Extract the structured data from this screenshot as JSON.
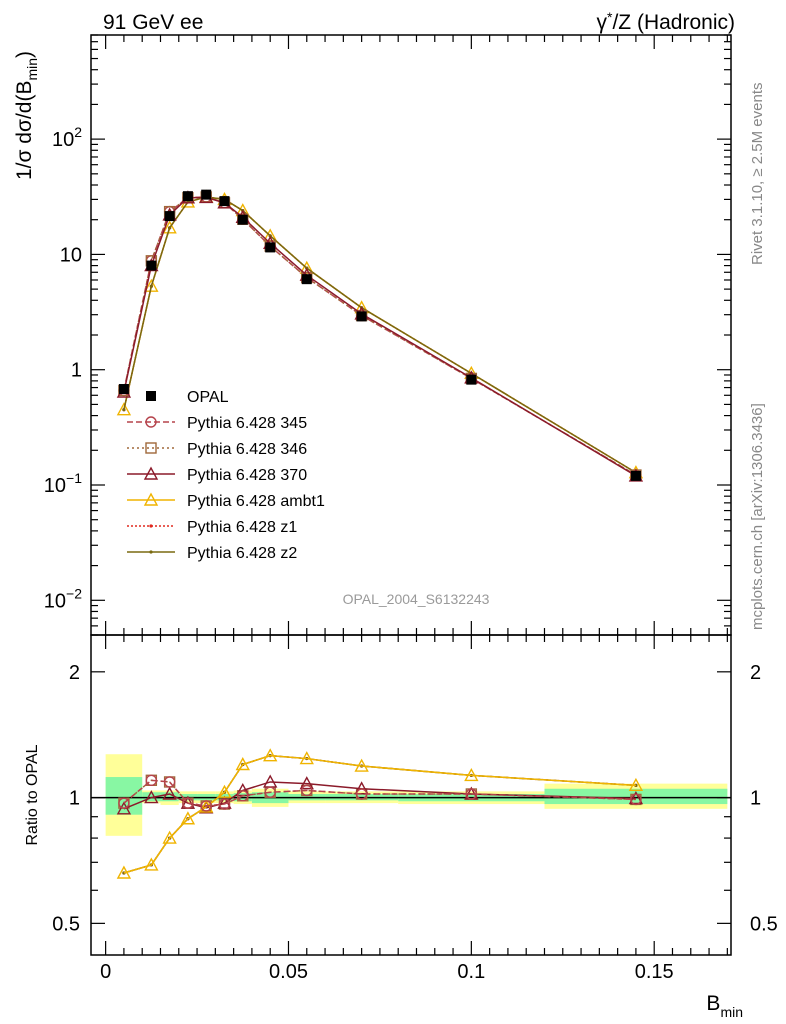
{
  "header": {
    "left": "91 GeV ee",
    "right": "γ*/Z (Hadronic)",
    "right_parts": [
      "γ",
      "*",
      "/Z (Hadronic)"
    ]
  },
  "side_text": {
    "upper": "Rivet 3.1.10, ≥ 2.5M events",
    "lower": "mcplots.cern.ch [arXiv:1306.3436]"
  },
  "watermark": "OPAL_2004_S6132243",
  "chart_data": [
    {
      "type": "line",
      "role": "main",
      "ylabel_parts": [
        "1/σ dσ/d(B",
        "min",
        ")"
      ],
      "y_scale": "log",
      "ylim": [
        0.005,
        800
      ],
      "y_ticks": [
        {
          "v": 0.01,
          "base": "10",
          "exp": "−2"
        },
        {
          "v": 0.1,
          "base": "10",
          "exp": "−1"
        },
        {
          "v": 1,
          "base": "1",
          "exp": ""
        },
        {
          "v": 10,
          "base": "10",
          "exp": ""
        },
        {
          "v": 100,
          "base": "10",
          "exp": "2"
        }
      ],
      "x": [
        0.005,
        0.0125,
        0.0175,
        0.0225,
        0.0275,
        0.0325,
        0.0375,
        0.045,
        0.055,
        0.07,
        0.1,
        0.145
      ],
      "series": [
        {
          "name": "OPAL",
          "kind": "data",
          "color": "#000000",
          "marker": "square",
          "values": [
            0.68,
            8.0,
            21.5,
            32.0,
            33.0,
            29.0,
            20.0,
            11.5,
            6.1,
            2.9,
            0.82,
            0.12
          ]
        },
        {
          "name": "Pythia 6.428 345",
          "color": "#b5434c",
          "marker": "circle",
          "dash": "6,3",
          "values": [
            0.66,
            8.8,
            23.5,
            31.0,
            31.5,
            28.0,
            20.2,
            11.8,
            6.3,
            2.95,
            0.84,
            0.122
          ]
        },
        {
          "name": "Pythia 6.428 346",
          "color": "#a0683a",
          "marker": "square-open",
          "dash": "2,3",
          "values": [
            0.66,
            8.8,
            23.5,
            31.0,
            31.5,
            28.0,
            20.2,
            11.8,
            6.3,
            2.95,
            0.84,
            0.122
          ]
        },
        {
          "name": "Pythia 6.428 370",
          "color": "#8b1a2a",
          "marker": "triangle-open",
          "dash": "",
          "values": [
            0.64,
            8.0,
            22.0,
            31.0,
            31.2,
            28.0,
            21.0,
            12.5,
            6.6,
            3.05,
            0.85,
            0.12
          ]
        },
        {
          "name": "Pythia 6.428 ambt1",
          "color": "#f0b400",
          "marker": "triangle-open",
          "dash": "",
          "values": [
            0.45,
            5.3,
            17.0,
            28.5,
            31.5,
            30.0,
            24.0,
            14.5,
            7.6,
            3.45,
            0.93,
            0.128
          ]
        },
        {
          "name": "Pythia 6.428 z1",
          "color": "#e0281e",
          "marker": "dot",
          "dash": "2,2",
          "values": [
            0.45,
            5.3,
            17.0,
            28.5,
            31.5,
            30.0,
            24.0,
            14.5,
            7.6,
            3.45,
            0.93,
            0.128
          ]
        },
        {
          "name": "Pythia 6.428 z2",
          "color": "#7a6a10",
          "marker": "dot",
          "dash": "",
          "values": [
            0.45,
            5.3,
            17.0,
            28.5,
            31.5,
            30.0,
            24.0,
            14.5,
            7.6,
            3.45,
            0.93,
            0.128
          ]
        }
      ]
    },
    {
      "type": "line",
      "role": "ratio",
      "ylabel": "Ratio to OPAL",
      "xlabel_parts": [
        "B",
        "min"
      ],
      "y_scale": "log",
      "ylim": [
        0.42,
        2.45
      ],
      "xlim": [
        -0.004,
        0.171
      ],
      "x_ticks": [
        {
          "v": 0,
          "label": "0"
        },
        {
          "v": 0.05,
          "label": "0.05"
        },
        {
          "v": 0.1,
          "label": "0.1"
        },
        {
          "v": 0.15,
          "label": "0.15"
        }
      ],
      "y_ticks": [
        {
          "v": 0.5,
          "label": "0.5"
        },
        {
          "v": 1,
          "label": "1"
        },
        {
          "v": 2,
          "label": "2"
        }
      ],
      "uncertainty_bins": [
        {
          "x0": 0.0,
          "x1": 0.01,
          "inner": [
            0.91,
            1.12
          ],
          "outer": [
            0.81,
            1.27
          ]
        },
        {
          "x0": 0.01,
          "x1": 0.015,
          "inner": [
            0.98,
            1.03
          ],
          "outer": [
            0.97,
            1.04
          ]
        },
        {
          "x0": 0.015,
          "x1": 0.02,
          "inner": [
            0.98,
            1.03
          ],
          "outer": [
            0.96,
            1.04
          ]
        },
        {
          "x0": 0.02,
          "x1": 0.025,
          "inner": [
            0.985,
            1.02
          ],
          "outer": [
            0.97,
            1.035
          ]
        },
        {
          "x0": 0.025,
          "x1": 0.03,
          "inner": [
            0.985,
            1.02
          ],
          "outer": [
            0.97,
            1.035
          ]
        },
        {
          "x0": 0.03,
          "x1": 0.035,
          "inner": [
            0.985,
            1.02
          ],
          "outer": [
            0.97,
            1.035
          ]
        },
        {
          "x0": 0.035,
          "x1": 0.04,
          "inner": [
            0.98,
            1.025
          ],
          "outer": [
            0.965,
            1.04
          ]
        },
        {
          "x0": 0.04,
          "x1": 0.05,
          "inner": [
            0.97,
            1.03
          ],
          "outer": [
            0.95,
            1.05
          ]
        },
        {
          "x0": 0.05,
          "x1": 0.06,
          "inner": [
            0.985,
            1.02
          ],
          "outer": [
            0.97,
            1.035
          ]
        },
        {
          "x0": 0.06,
          "x1": 0.08,
          "inner": [
            0.985,
            1.02
          ],
          "outer": [
            0.97,
            1.035
          ]
        },
        {
          "x0": 0.08,
          "x1": 0.12,
          "inner": [
            0.98,
            1.02
          ],
          "outer": [
            0.965,
            1.035
          ]
        },
        {
          "x0": 0.12,
          "x1": 0.17,
          "inner": [
            0.965,
            1.05
          ],
          "outer": [
            0.94,
            1.08
          ]
        }
      ],
      "series": [
        {
          "name": "Pythia 6.428 345",
          "color": "#b5434c",
          "marker": "circle",
          "dash": "6,3",
          "values": [
            0.97,
            1.1,
            1.09,
            0.97,
            0.955,
            0.965,
            1.01,
            1.03,
            1.04,
            1.02,
            1.02,
            0.99
          ]
        },
        {
          "name": "Pythia 6.428 346",
          "color": "#a0683a",
          "marker": "square-open",
          "dash": "2,3",
          "values": [
            0.97,
            1.1,
            1.09,
            0.97,
            0.955,
            0.965,
            1.01,
            1.03,
            1.04,
            1.02,
            1.02,
            0.99
          ]
        },
        {
          "name": "Pythia 6.428 370",
          "color": "#8b1a2a",
          "marker": "triangle-open",
          "dash": "",
          "values": [
            0.94,
            1.0,
            1.02,
            0.97,
            0.945,
            0.97,
            1.04,
            1.09,
            1.08,
            1.05,
            1.02,
            0.995
          ]
        },
        {
          "name": "Pythia 6.428 ambt1",
          "color": "#f0b400",
          "marker": "triangle-open",
          "dash": "",
          "values": [
            0.66,
            0.69,
            0.8,
            0.89,
            0.95,
            1.03,
            1.2,
            1.26,
            1.24,
            1.19,
            1.13,
            1.07
          ]
        },
        {
          "name": "Pythia 6.428 z1",
          "color": "#e0281e",
          "marker": "dot",
          "dash": "2,2",
          "values": [
            0.66,
            0.69,
            0.8,
            0.89,
            0.95,
            1.03,
            1.2,
            1.26,
            1.24,
            1.19,
            1.13,
            1.07
          ]
        },
        {
          "name": "Pythia 6.428 z2",
          "color": "#7a6a10",
          "marker": "dot",
          "dash": "",
          "values": [
            0.66,
            0.69,
            0.8,
            0.89,
            0.95,
            1.03,
            1.2,
            1.26,
            1.24,
            1.19,
            1.13,
            1.07
          ]
        }
      ]
    }
  ]
}
